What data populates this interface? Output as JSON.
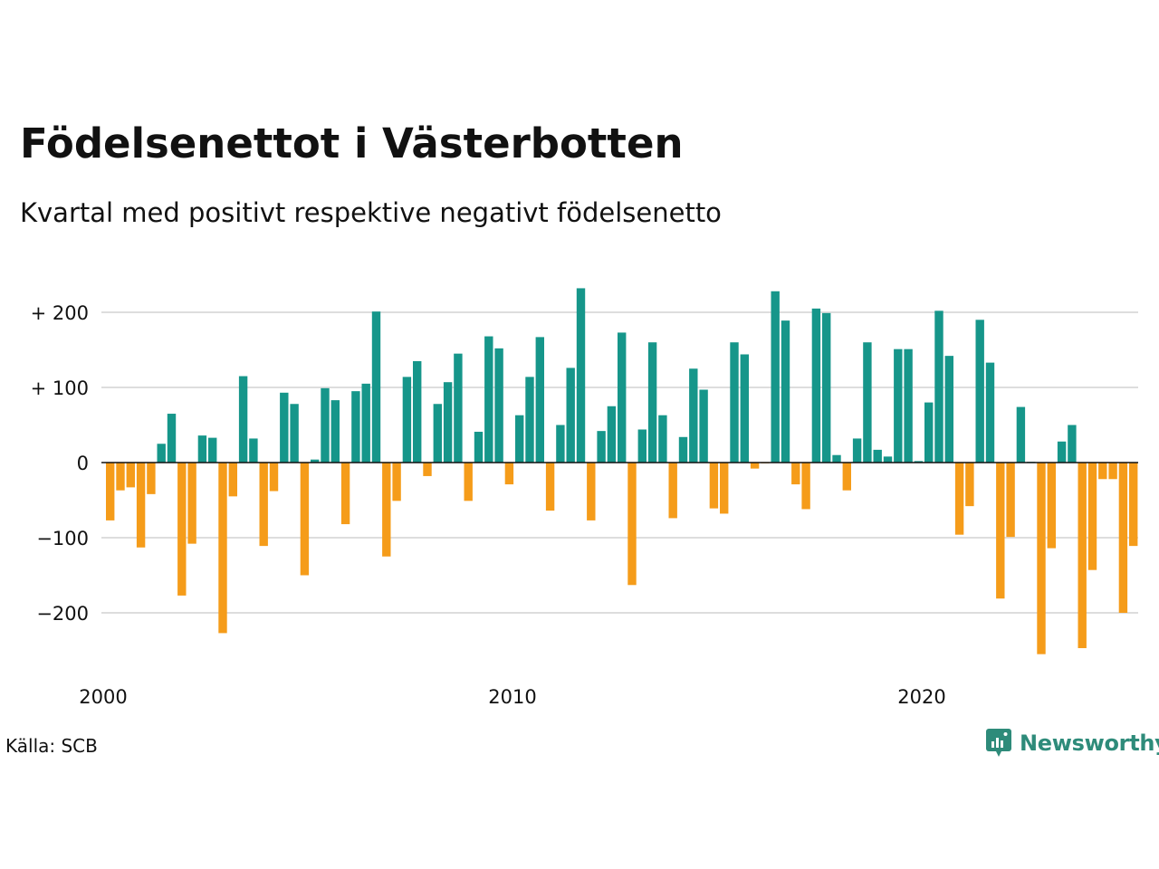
{
  "header": {
    "title": "Födelsenettot i Västerbotten",
    "subtitle": "Kvartal med positivt respektive negativt födelsenetto"
  },
  "footer": {
    "source": "Källa: SCB",
    "brand": "Newsworthy",
    "brand_icon": "newsworthy-logo-icon"
  },
  "colors": {
    "positive": "#16968a",
    "negative": "#f59c1a",
    "grid": "#dddddd",
    "brand": "#2e8b7a"
  },
  "chart_data": {
    "type": "bar",
    "ylim": [
      -270,
      240
    ],
    "yticks": [
      {
        "value": 200,
        "label": "+ 200"
      },
      {
        "value": 100,
        "label": "+ 100"
      },
      {
        "value": 0,
        "label": "0"
      },
      {
        "value": -100,
        "label": "−100"
      },
      {
        "value": -200,
        "label": "−200"
      }
    ],
    "xticks": [
      "2000",
      "2010",
      "2020"
    ],
    "grid": true,
    "values": [
      -77,
      -37,
      -33,
      -113,
      -42,
      25,
      65,
      -177,
      -108,
      36,
      33,
      -227,
      -45,
      115,
      32,
      -111,
      -38,
      93,
      78,
      -150,
      4,
      99,
      83,
      -82,
      95,
      105,
      201,
      -125,
      -51,
      114,
      135,
      -18,
      78,
      107,
      145,
      -51,
      41,
      168,
      152,
      -29,
      63,
      114,
      167,
      -64,
      50,
      126,
      232,
      -77,
      42,
      75,
      173,
      -163,
      44,
      160,
      63,
      -74,
      34,
      125,
      97,
      -61,
      -68,
      160,
      144,
      -8,
      -1,
      228,
      189,
      -29,
      -62,
      205,
      199,
      10,
      -37,
      32,
      160,
      17,
      8,
      151,
      151,
      2,
      80,
      202,
      142,
      -96,
      -58,
      190,
      133,
      -181,
      -99,
      74,
      1,
      -255,
      -114,
      28,
      50,
      -247,
      -143,
      -22,
      -22,
      -200,
      -111
    ]
  }
}
